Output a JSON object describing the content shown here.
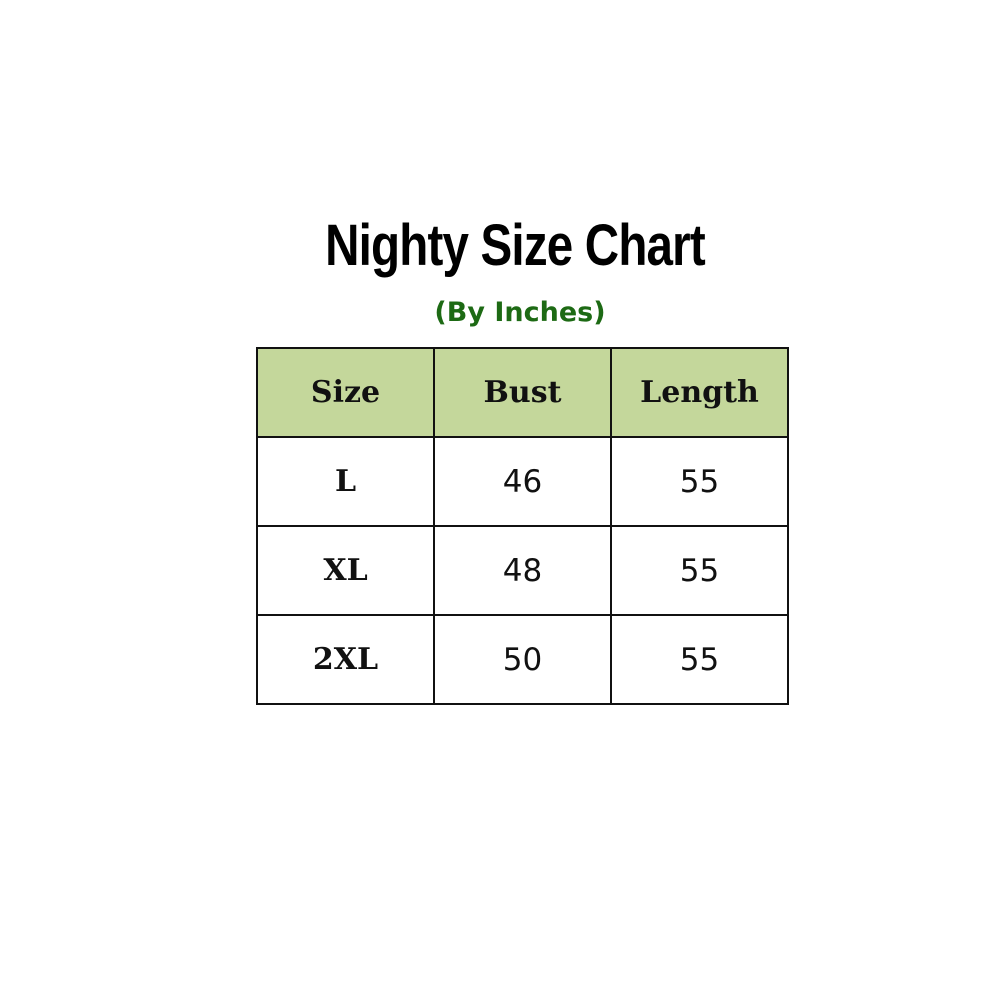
{
  "title": "Nighty Size Chart",
  "subtitle": "(By Inches)",
  "colors": {
    "header_fill": "#c4d79b",
    "subtitle": "#1d6a14"
  },
  "table": {
    "headers": [
      "Size",
      "Bust",
      "Length"
    ],
    "rows": [
      [
        "L",
        "46",
        "55"
      ],
      [
        "XL",
        "48",
        "55"
      ],
      [
        "2XL",
        "50",
        "55"
      ]
    ]
  }
}
